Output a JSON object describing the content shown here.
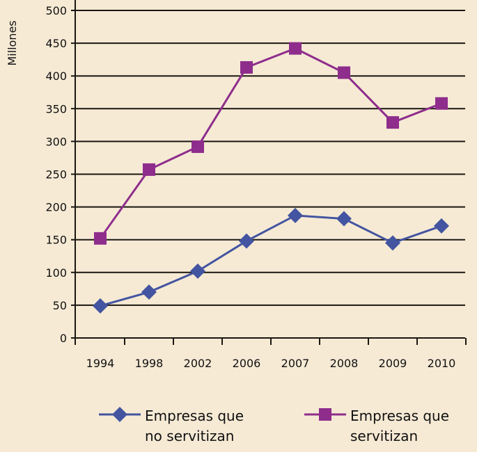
{
  "chart_data": {
    "type": "line",
    "ylabel": "Millones",
    "xlabel": "",
    "categories": [
      "1994",
      "1998",
      "2002",
      "2006",
      "2007",
      "2008",
      "2009",
      "2010"
    ],
    "ylim": [
      0,
      500
    ],
    "yticks": [
      0,
      50,
      100,
      150,
      200,
      250,
      300,
      350,
      400,
      450,
      500
    ],
    "grid": true,
    "legend_position": "bottom",
    "series": [
      {
        "name": "Empresas que no servitizan",
        "name_lines": [
          "Empresas que",
          "no servitizan"
        ],
        "marker": "diamond",
        "color": "#4354a0",
        "values": [
          49,
          70,
          102,
          148,
          187,
          182,
          145,
          171
        ]
      },
      {
        "name": "Empresas que servitizan",
        "name_lines": [
          "Empresas que",
          "servitizan"
        ],
        "marker": "square",
        "color": "#8e2d8c",
        "values": [
          152,
          257,
          292,
          413,
          442,
          405,
          329,
          358
        ]
      }
    ]
  }
}
